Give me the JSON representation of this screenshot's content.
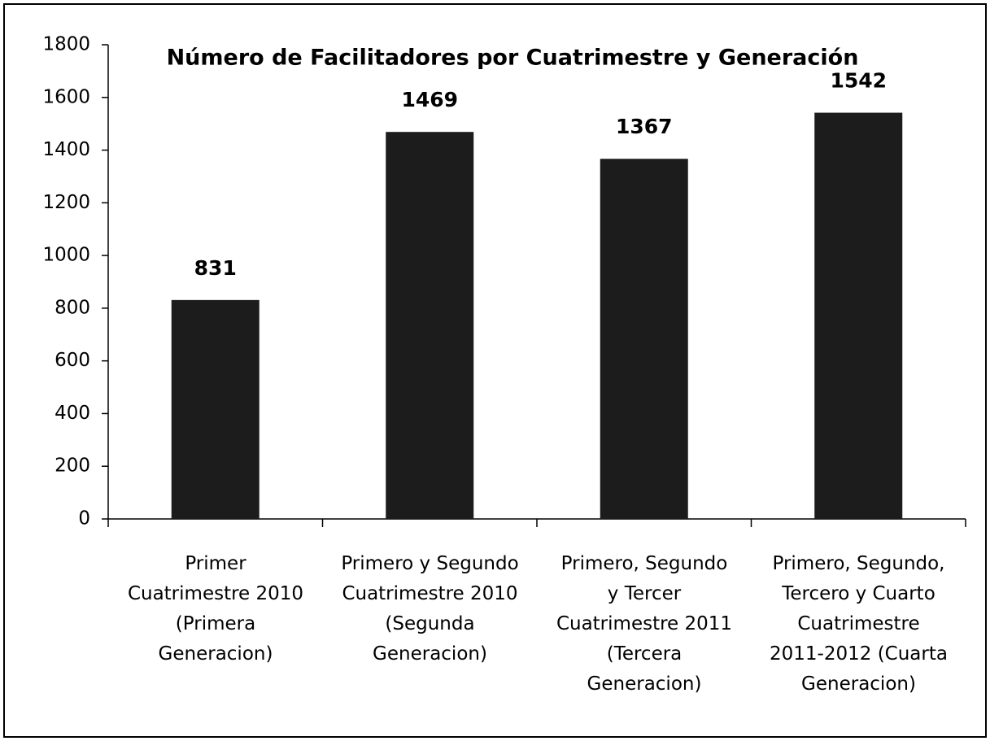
{
  "chart_data": {
    "type": "bar",
    "title": "Número de Facilitadores por Cuatrimestre y Generación",
    "categories": [
      "Primer\nCuatrimestre 2010\n(Primera\nGeneracion)",
      "Primero y Segundo\nCuatrimestre 2010\n(Segunda\nGeneracion)",
      "Primero, Segundo\ny Tercer\nCuatrimestre 2011\n(Tercera\nGeneracion)",
      "Primero, Segundo,\nTercero y Cuarto\nCuatrimestre\n2011-2012 (Cuarta\nGeneracion)"
    ],
    "values": [
      831,
      1469,
      1367,
      1542
    ],
    "color": "#1c1c1c",
    "ylim": [
      0,
      1800
    ],
    "yticks": [
      0,
      200,
      400,
      600,
      800,
      1000,
      1200,
      1400,
      1600,
      1800
    ],
    "grid": false
  }
}
